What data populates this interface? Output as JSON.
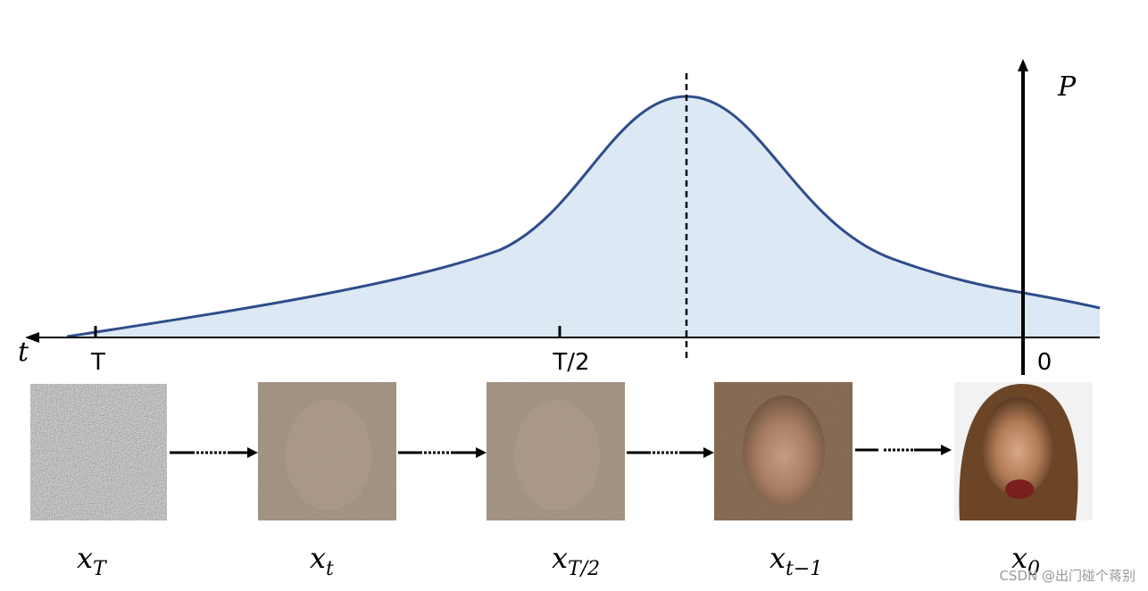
{
  "axis": {
    "t_label": "t",
    "p_label": "P",
    "ticks": [
      "T",
      "T/2",
      "0"
    ]
  },
  "images": [
    {
      "base": "x",
      "sub": "T"
    },
    {
      "base": "x",
      "sub": "t"
    },
    {
      "base": "x",
      "sub": "T/2"
    },
    {
      "base": "x",
      "sub": "t−1"
    },
    {
      "base": "x",
      "sub": "0"
    }
  ],
  "watermark": "CSDN @出门碰个蒋别"
}
